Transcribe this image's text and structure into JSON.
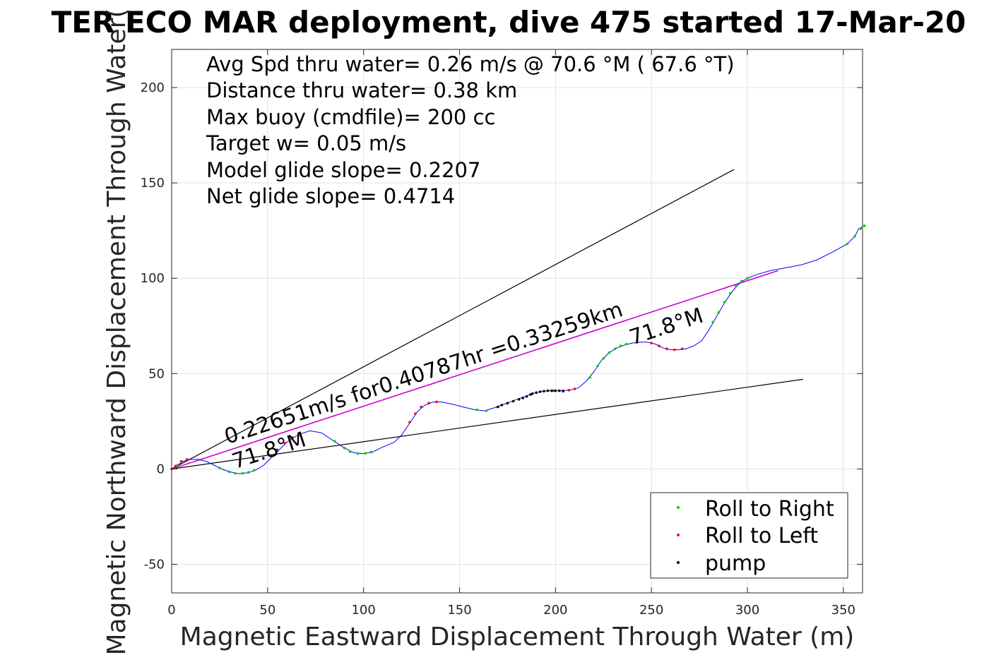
{
  "chart_data": {
    "type": "line",
    "title": "TER ECO MAR deployment, dive 475 started 17-Mar-20",
    "xlabel": "Magnetic Eastward Displacement Through Water (m)",
    "ylabel": "Magnetic Northward Displacement Through Water(",
    "xlim": [
      0,
      360
    ],
    "ylim": [
      -65,
      220
    ],
    "xticks": [
      0,
      50,
      100,
      150,
      200,
      250,
      300,
      350
    ],
    "yticks": [
      -50,
      0,
      50,
      100,
      150,
      200
    ],
    "grid": true,
    "info_lines": [
      "Avg Spd thru water=  0.26 m/s @  70.6 °M ( 67.6 °T)",
      "Distance thru water=  0.38 km",
      "Max buoy (cmdfile)= 200 cc",
      "Target w= 0.05 m/s",
      "Model glide slope= 0.2207",
      "Net glide slope= 0.4714"
    ],
    "annotations": [
      {
        "text": "0.22651m/s for0.40787hr =0.33259km",
        "x": 29,
        "y": 13,
        "angle_deg": 18
      },
      {
        "text": "71.8°M",
        "x": 33,
        "y": 0,
        "angle_deg": 18
      },
      {
        "text": "71.8°M",
        "x": 240,
        "y": 65,
        "angle_deg": 18
      }
    ],
    "legend": {
      "placement": "bottom-right",
      "entries": [
        {
          "label": "Roll to Right",
          "color": "#00cc00"
        },
        {
          "label": "Roll to Left",
          "color": "#ff0000"
        },
        {
          "label": "pump",
          "color": "#000000"
        }
      ]
    },
    "colors": {
      "track": "#0000ff",
      "trend": "#cc00cc",
      "bounds": "#000000",
      "roll_right": "#00cc00",
      "roll_left": "#ff0000",
      "pump": "#000000"
    },
    "series": [
      {
        "name": "track",
        "type": "line",
        "points": [
          [
            0,
            0
          ],
          [
            3,
            2
          ],
          [
            6,
            4
          ],
          [
            9,
            5
          ],
          [
            14,
            5
          ],
          [
            18,
            4
          ],
          [
            22,
            2
          ],
          [
            26,
            0
          ],
          [
            30,
            -1.5
          ],
          [
            35,
            -2.5
          ],
          [
            40,
            -2
          ],
          [
            44,
            -0.5
          ],
          [
            48,
            2
          ],
          [
            54,
            8
          ],
          [
            60,
            14
          ],
          [
            66,
            18
          ],
          [
            72,
            20
          ],
          [
            78,
            19
          ],
          [
            84,
            15
          ],
          [
            90,
            11
          ],
          [
            95,
            8.5
          ],
          [
            100,
            8
          ],
          [
            105,
            9
          ],
          [
            110,
            11.5
          ],
          [
            116,
            14
          ],
          [
            120,
            18
          ],
          [
            124,
            24
          ],
          [
            128,
            30
          ],
          [
            132,
            33.5
          ],
          [
            136,
            35
          ],
          [
            140,
            35.2
          ],
          [
            146,
            34
          ],
          [
            152,
            32.5
          ],
          [
            158,
            31
          ],
          [
            163,
            30.5
          ],
          [
            168,
            32
          ],
          [
            172,
            33.5
          ],
          [
            176,
            35
          ],
          [
            180,
            36.5
          ],
          [
            184,
            38
          ],
          [
            188,
            39.5
          ],
          [
            192,
            40.5
          ],
          [
            196,
            41
          ],
          [
            200,
            41
          ],
          [
            204,
            41
          ],
          [
            208,
            41.5
          ],
          [
            212,
            42.5
          ],
          [
            216,
            46
          ],
          [
            220,
            51
          ],
          [
            224,
            57
          ],
          [
            228,
            61
          ],
          [
            232,
            63.5
          ],
          [
            236,
            65
          ],
          [
            240,
            66
          ],
          [
            244,
            66.5
          ],
          [
            248,
            66.5
          ],
          [
            252,
            65.5
          ],
          [
            256,
            63.5
          ],
          [
            260,
            62.5
          ],
          [
            264,
            62.5
          ],
          [
            268,
            63
          ],
          [
            272,
            64.5
          ],
          [
            276,
            67
          ],
          [
            280,
            73
          ],
          [
            284,
            80
          ],
          [
            288,
            87
          ],
          [
            292,
            93
          ],
          [
            296,
            97.5
          ],
          [
            300,
            100
          ],
          [
            305,
            102
          ],
          [
            312,
            104
          ],
          [
            320,
            105.5
          ],
          [
            328,
            107
          ],
          [
            336,
            109.5
          ],
          [
            344,
            113.5
          ],
          [
            352,
            118
          ],
          [
            356,
            122
          ],
          [
            358,
            126
          ],
          [
            360,
            127
          ]
        ]
      },
      {
        "name": "Roll to Right",
        "type": "scatter",
        "points": [
          [
            3,
            2
          ],
          [
            25,
            0.5
          ],
          [
            30,
            -1.5
          ],
          [
            33,
            -2.3
          ],
          [
            37,
            -2.3
          ],
          [
            40,
            -1.8
          ],
          [
            43,
            -0.7
          ],
          [
            85,
            14.5
          ],
          [
            90,
            11
          ],
          [
            93,
            9
          ],
          [
            97,
            8
          ],
          [
            101,
            8.2
          ],
          [
            104,
            8.8
          ],
          [
            159,
            31
          ],
          [
            164,
            30.5
          ],
          [
            218,
            48
          ],
          [
            222,
            54
          ],
          [
            225,
            58
          ],
          [
            228,
            61
          ],
          [
            231,
            63
          ],
          [
            234,
            64.5
          ],
          [
            237,
            65.5
          ],
          [
            282,
            77
          ],
          [
            285,
            82
          ],
          [
            288,
            87.5
          ],
          [
            291,
            92
          ],
          [
            294,
            96
          ],
          [
            297,
            98.5
          ],
          [
            300,
            100
          ],
          [
            352,
            118
          ],
          [
            356,
            122
          ],
          [
            359,
            126
          ],
          [
            361,
            127.5
          ]
        ]
      },
      {
        "name": "Roll to Left",
        "type": "scatter",
        "points": [
          [
            0,
            0
          ],
          [
            2,
            1.5
          ],
          [
            5,
            4
          ],
          [
            8,
            5
          ],
          [
            55,
            10
          ],
          [
            59,
            13.5
          ],
          [
            63,
            16.5
          ],
          [
            67,
            18.5
          ],
          [
            124,
            24.5
          ],
          [
            127,
            29
          ],
          [
            130,
            32.5
          ],
          [
            134,
            34.5
          ],
          [
            138,
            35.2
          ],
          [
            199,
            41
          ],
          [
            204,
            41
          ],
          [
            207,
            41.3
          ],
          [
            210,
            42
          ],
          [
            250,
            66
          ],
          [
            254,
            64.5
          ],
          [
            258,
            63
          ],
          [
            262,
            62.5
          ],
          [
            266,
            63
          ]
        ]
      },
      {
        "name": "pump",
        "type": "scatter",
        "points": [
          [
            170,
            32.5
          ],
          [
            172,
            33.5
          ],
          [
            175,
            34.5
          ],
          [
            178,
            35.5
          ],
          [
            181,
            36.5
          ],
          [
            183,
            37.2
          ],
          [
            185,
            38
          ],
          [
            187,
            39
          ],
          [
            188,
            39.5
          ],
          [
            190,
            40
          ],
          [
            192,
            40.5
          ],
          [
            194,
            40.8
          ],
          [
            196,
            41
          ],
          [
            198,
            41
          ],
          [
            200,
            41
          ],
          [
            202,
            41
          ],
          [
            204,
            40.8
          ]
        ]
      },
      {
        "name": "trend",
        "type": "line",
        "points": [
          [
            0,
            0
          ],
          [
            316,
            104
          ]
        ]
      },
      {
        "name": "upper bound",
        "type": "line",
        "points": [
          [
            0,
            0
          ],
          [
            293,
            157
          ]
        ]
      },
      {
        "name": "lower bound",
        "type": "line",
        "points": [
          [
            0,
            0
          ],
          [
            329,
            47
          ]
        ]
      }
    ]
  }
}
